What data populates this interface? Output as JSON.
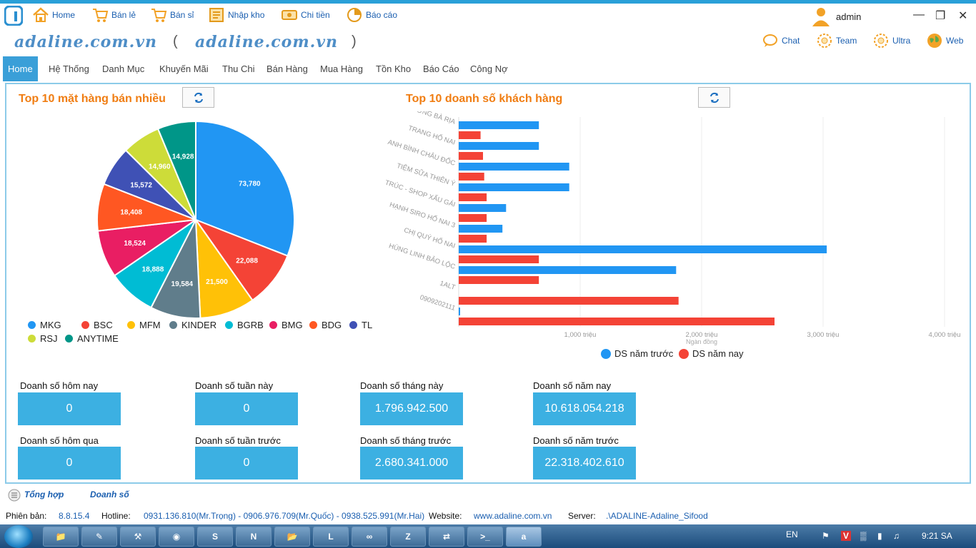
{
  "toolbar": {
    "items": [
      {
        "label": "Home",
        "icon": "home-icon"
      },
      {
        "label": "Bán lẻ",
        "icon": "cart-icon"
      },
      {
        "label": "Bán sỉ",
        "icon": "cart-icon"
      },
      {
        "label": "Nhập kho",
        "icon": "book-icon"
      },
      {
        "label": "Chi tiền",
        "icon": "money-icon"
      },
      {
        "label": "Báo cáo",
        "icon": "chart-icon"
      }
    ],
    "user": "admin"
  },
  "brand": {
    "text": "adaline.com.vn",
    "text2": "adaline.com.vn",
    "open_paren": "(",
    "close_paren": ")"
  },
  "social": [
    {
      "label": "Chat",
      "icon": "chat-icon"
    },
    {
      "label": "Team",
      "icon": "team-icon"
    },
    {
      "label": "Ultra",
      "icon": "ultra-icon"
    },
    {
      "label": "Web",
      "icon": "globe-icon"
    }
  ],
  "menu": [
    "Home",
    "Hệ Thống",
    "Danh Mục",
    "Khuyến Mãi",
    "Thu Chi",
    "Bán Hàng",
    "Mua Hàng",
    "Tồn Kho",
    "Báo Cáo",
    "Công Nợ"
  ],
  "pie_title": "Top 10 mặt hàng bán nhiều",
  "bar_title": "Top 10 doanh số  khách hàng",
  "colors": {
    "accent": "#3a9fd8",
    "title": "#f07d12",
    "stat_box": "#3cb0e2",
    "blue_bar": "#2196f3",
    "red_bar": "#f44336"
  },
  "chart_data": [
    {
      "type": "pie",
      "categories": [
        "MKG",
        "BSC",
        "MFM",
        "KINDER",
        "BGRB",
        "BMG",
        "BDG",
        "TL",
        "RSJ",
        "ANYTIME"
      ],
      "values": [
        73780,
        22088,
        21500,
        19584,
        18888,
        18524,
        18408,
        15572,
        14960,
        14928
      ],
      "value_labels": [
        "73,780",
        "22,088",
        "21,500",
        "19,584",
        "18,888",
        "18,524",
        "18,408",
        "15,572",
        "14,960",
        "14,928"
      ],
      "colors": [
        "#2196f3",
        "#f44336",
        "#ffc107",
        "#607d8b",
        "#00bcd4",
        "#e91e63",
        "#ff5722",
        "#3f51b5",
        "#cddc39",
        "#009688"
      ],
      "legend_position": "bottom"
    },
    {
      "type": "bar",
      "orientation": "horizontal",
      "categories": [
        "SƠN LƯƠNG BÀ RỊA",
        "TRANG HỐ NAI",
        "ANH BÌNH CHÂU ĐỐC",
        "TIỆM SỮA THIÊN Ý",
        "TRÚC - SHOP XẤU GÁI",
        "HẠNH SIRO HỐ NAI 3",
        "CHỊ QUÝ HỐ NAI",
        "HÙNG LINH BẢO LỘC",
        "1ALT",
        "0909202111"
      ],
      "series": [
        {
          "name": "DS năm trước",
          "color": "#2196f3",
          "values": [
            660,
            660,
            910,
            910,
            390,
            360,
            3030,
            1790,
            0,
            10
          ]
        },
        {
          "name": "DS năm nay",
          "color": "#f44336",
          "values": [
            180,
            200,
            210,
            230,
            230,
            230,
            660,
            660,
            1810,
            2600
          ]
        }
      ],
      "xticks": [
        1000,
        2000,
        3000,
        4000
      ],
      "xtick_labels": [
        "1,000 triệu",
        "2,000 triệu",
        "3,000 triệu",
        "4,000 triệu"
      ],
      "xlabel": "Ngàn đồng",
      "xlim": [
        0,
        4000
      ],
      "legend_position": "bottom"
    }
  ],
  "stats": {
    "today_label": "Doanh số hôm nay",
    "today": "0",
    "week_label": "Doanh số tuần này",
    "week": "0",
    "month_label": "Doanh số tháng này",
    "month": "1.796.942.500",
    "year_label": "Doanh số năm nay",
    "year": "10.618.054.218",
    "yesterday_label": "Doanh số hôm qua",
    "yesterday": "0",
    "lastweek_label": "Doanh số tuần trước",
    "lastweek": "0",
    "lastmonth_label": "Doanh số tháng trước",
    "lastmonth": "2.680.341.000",
    "lastyear_label": "Doanh số năm trước",
    "lastyear": "22.318.402.610"
  },
  "tabs": {
    "summary": "Tổng hợp",
    "revenue": "Doanh số"
  },
  "status": {
    "version_label": "Phiên bản:",
    "version": "8.8.15.4",
    "hotline_label": "Hotline:",
    "hotline": "0931.136.810(Mr.Trọng) - 0906.976.709(Mr.Quốc) - 0938.525.991(Mr.Hai)",
    "website_label": "Website:",
    "website": "www.adaline.com.vn",
    "server_label": "Server:",
    "server": ".\\ADALINE-Adaline_Sifood"
  },
  "taskbar": {
    "lang": "EN",
    "time": "9:21 SA"
  }
}
